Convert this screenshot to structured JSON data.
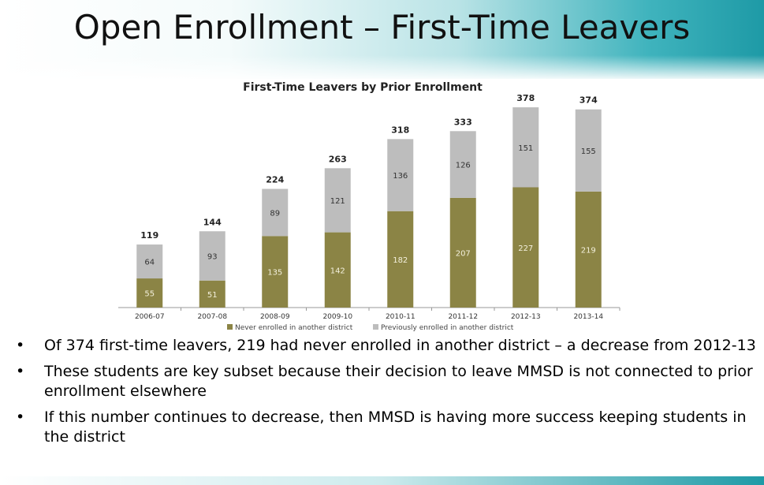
{
  "slide": {
    "title": "Open Enrollment – First-Time Leavers"
  },
  "chart_data": {
    "type": "bar",
    "stacked": true,
    "title": "First-Time Leavers by Prior Enrollment",
    "categories": [
      "2006-07",
      "2007-08",
      "2008-09",
      "2009-10",
      "2010-11",
      "2011-12",
      "2012-13",
      "2013-14"
    ],
    "series": [
      {
        "name": "Never enrolled in another district",
        "values": [
          55,
          51,
          135,
          142,
          182,
          207,
          227,
          219
        ],
        "color": "#8b8445"
      },
      {
        "name": "Previously enrolled in another district",
        "values": [
          64,
          93,
          89,
          121,
          136,
          126,
          151,
          155
        ],
        "color": "#bdbdbd"
      }
    ],
    "totals": [
      119,
      144,
      224,
      263,
      318,
      333,
      378,
      374
    ],
    "ylim": [
      0,
      390
    ],
    "grid": false,
    "legend": "bottom"
  },
  "bullets": [
    "Of 374 first-time leavers, 219 had never enrolled in another district – a decrease from 2012-13",
    "These students are key subset because their decision to leave MMSD is not connected to prior enrollment elsewhere",
    "If this number continues to decrease, then MMSD is having more success keeping students in the district"
  ]
}
